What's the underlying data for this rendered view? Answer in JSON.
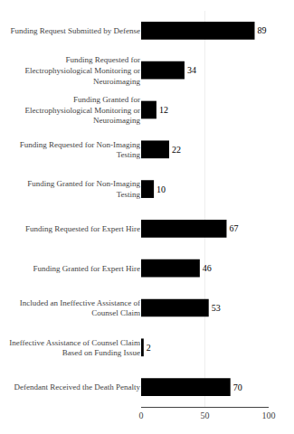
{
  "chart_data": {
    "type": "bar",
    "orientation": "horizontal",
    "categories": [
      "Funding Request Submitted by Defense",
      "Funding Requested for\nElectrophysiological Monitoring or\nNeuroimaging",
      "Funding Granted for\nElectrophysiological Monitoring or\nNeuroimaging",
      "Funding Requested for Non-Imaging\nTesting",
      "Funding Granted for Non-Imaging\nTesting",
      "Funding Requested for Expert Hire",
      "Funding Granted for Expert Hire",
      "Included an Ineffective Assistance of\nCounsel Claim",
      "Ineffective Assistance of Counsel Claim\nBased on Funding Issue",
      "Defendant Received the Death Penalty"
    ],
    "values": [
      89,
      34,
      12,
      22,
      10,
      67,
      46,
      53,
      2,
      70
    ],
    "color": "#000000",
    "xlim": [
      0,
      100
    ],
    "xticks": [
      0,
      50,
      100
    ],
    "grid": true,
    "data_labels": true
  }
}
